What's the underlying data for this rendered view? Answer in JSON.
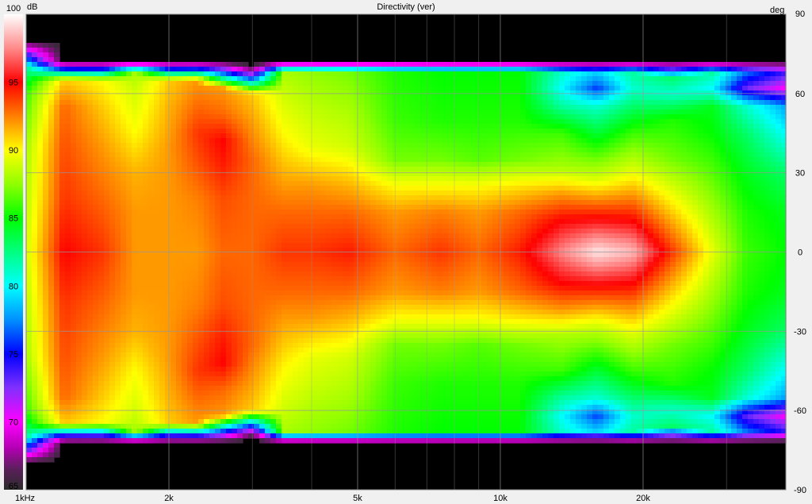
{
  "chart_data": {
    "type": "heatmap",
    "title": "Directivity (ver)",
    "colorbar": {
      "unit": "dB",
      "ticks": [
        100,
        95,
        90,
        85,
        80,
        75,
        70,
        65
      ],
      "range": [
        65,
        100
      ],
      "stops": [
        {
          "v": 65,
          "c": "#2b2b2b"
        },
        {
          "v": 66.5,
          "c": "#5a1f5a"
        },
        {
          "v": 68,
          "c": "#b000b0"
        },
        {
          "v": 70,
          "c": "#ff00ff"
        },
        {
          "v": 72.5,
          "c": "#8030ff"
        },
        {
          "v": 75,
          "c": "#0000ff"
        },
        {
          "v": 77.5,
          "c": "#0090ff"
        },
        {
          "v": 80,
          "c": "#00ffff"
        },
        {
          "v": 82.5,
          "c": "#00ff80"
        },
        {
          "v": 85,
          "c": "#00ff00"
        },
        {
          "v": 87.5,
          "c": "#90ff00"
        },
        {
          "v": 90,
          "c": "#ffff00"
        },
        {
          "v": 92.5,
          "c": "#ff8000"
        },
        {
          "v": 95,
          "c": "#ff0000"
        },
        {
          "v": 97.5,
          "c": "#ff8a8a"
        },
        {
          "v": 100,
          "c": "#ffffff"
        }
      ]
    },
    "y_axis": {
      "unit": "deg",
      "ticks": [
        90,
        60,
        30,
        0,
        -30,
        -60,
        -90
      ],
      "range": [
        -90,
        90
      ]
    },
    "x_axis": {
      "scale": "log",
      "range_hz": [
        1000,
        40000
      ],
      "tick_labels": [
        {
          "hz": 1000,
          "label": "1kHz"
        },
        {
          "hz": 2000,
          "label": "2k"
        },
        {
          "hz": 5000,
          "label": "5k"
        },
        {
          "hz": 10000,
          "label": "10k"
        },
        {
          "hz": 20000,
          "label": "20k"
        }
      ],
      "minor_gridlines_hz": [
        3000,
        4000,
        6000,
        7000,
        8000,
        9000,
        30000,
        40000
      ]
    },
    "grid": true,
    "columns": [
      {
        "hz": 1000,
        "profile": [
          [
            0,
            89
          ],
          [
            40,
            88
          ],
          [
            60,
            86
          ],
          [
            70,
            82
          ],
          [
            80,
            65
          ]
        ]
      },
      {
        "hz": 1200,
        "profile": [
          [
            0,
            95
          ],
          [
            20,
            94
          ],
          [
            40,
            93.5
          ],
          [
            55,
            93
          ],
          [
            65,
            91
          ],
          [
            72,
            65
          ]
        ]
      },
      {
        "hz": 1450,
        "profile": [
          [
            0,
            94
          ],
          [
            20,
            93
          ],
          [
            40,
            92
          ],
          [
            55,
            91
          ],
          [
            65,
            90
          ],
          [
            72,
            65
          ]
        ]
      },
      {
        "hz": 1700,
        "profile": [
          [
            0,
            92
          ],
          [
            15,
            92
          ],
          [
            30,
            91.5
          ],
          [
            45,
            90
          ],
          [
            60,
            89
          ],
          [
            68,
            88
          ],
          [
            72,
            65
          ]
        ]
      },
      {
        "hz": 2000,
        "profile": [
          [
            0,
            92
          ],
          [
            20,
            92
          ],
          [
            40,
            92
          ],
          [
            55,
            91.5
          ],
          [
            65,
            91
          ],
          [
            72,
            65
          ]
        ]
      },
      {
        "hz": 2300,
        "profile": [
          [
            0,
            92
          ],
          [
            20,
            92.5
          ],
          [
            35,
            93.5
          ],
          [
            45,
            94
          ],
          [
            55,
            93
          ],
          [
            65,
            92
          ],
          [
            72,
            65
          ]
        ]
      },
      {
        "hz": 2600,
        "profile": [
          [
            0,
            93
          ],
          [
            20,
            93.5
          ],
          [
            33,
            94.5
          ],
          [
            42,
            95
          ],
          [
            52,
            93
          ],
          [
            62,
            92
          ],
          [
            72,
            65
          ]
        ]
      },
      {
        "hz": 3000,
        "profile": [
          [
            0,
            93
          ],
          [
            20,
            93
          ],
          [
            35,
            93
          ],
          [
            48,
            92
          ],
          [
            60,
            91
          ],
          [
            70,
            65
          ]
        ]
      },
      {
        "hz": 3500,
        "profile": [
          [
            0,
            94
          ],
          [
            15,
            93
          ],
          [
            30,
            91.5
          ],
          [
            45,
            90
          ],
          [
            58,
            89
          ],
          [
            68,
            88
          ],
          [
            72,
            65
          ]
        ]
      },
      {
        "hz": 4000,
        "profile": [
          [
            0,
            94
          ],
          [
            15,
            93
          ],
          [
            25,
            92
          ],
          [
            40,
            89.5
          ],
          [
            55,
            88.5
          ],
          [
            68,
            87.5
          ],
          [
            72,
            65
          ]
        ]
      },
      {
        "hz": 4800,
        "profile": [
          [
            0,
            94.5
          ],
          [
            15,
            93
          ],
          [
            25,
            91.5
          ],
          [
            40,
            89
          ],
          [
            55,
            88
          ],
          [
            68,
            87
          ],
          [
            72,
            65
          ]
        ]
      },
      {
        "hz": 6000,
        "profile": [
          [
            0,
            93
          ],
          [
            15,
            92
          ],
          [
            25,
            90
          ],
          [
            35,
            87
          ],
          [
            50,
            86
          ],
          [
            68,
            85.5
          ],
          [
            72,
            65
          ]
        ]
      },
      {
        "hz": 7500,
        "profile": [
          [
            0,
            94
          ],
          [
            15,
            92.5
          ],
          [
            25,
            90
          ],
          [
            35,
            87
          ],
          [
            50,
            85.5
          ],
          [
            68,
            85
          ],
          [
            72,
            65
          ]
        ]
      },
      {
        "hz": 9000,
        "profile": [
          [
            0,
            93
          ],
          [
            15,
            92
          ],
          [
            25,
            90
          ],
          [
            35,
            86.5
          ],
          [
            50,
            85.5
          ],
          [
            68,
            85
          ],
          [
            72,
            65
          ]
        ]
      },
      {
        "hz": 11000,
        "profile": [
          [
            0,
            94.5
          ],
          [
            15,
            93
          ],
          [
            25,
            90.5
          ],
          [
            35,
            87
          ],
          [
            50,
            85.5
          ],
          [
            68,
            85
          ],
          [
            72,
            65
          ]
        ]
      },
      {
        "hz": 13500,
        "profile": [
          [
            0,
            97.5
          ],
          [
            12,
            95
          ],
          [
            22,
            92
          ],
          [
            32,
            88
          ],
          [
            45,
            86
          ],
          [
            55,
            82
          ],
          [
            62,
            80
          ],
          [
            68,
            81
          ],
          [
            72,
            65
          ]
        ]
      },
      {
        "hz": 16000,
        "profile": [
          [
            0,
            99.5
          ],
          [
            10,
            96
          ],
          [
            18,
            93
          ],
          [
            28,
            89
          ],
          [
            40,
            85.5
          ],
          [
            55,
            81
          ],
          [
            62,
            76
          ],
          [
            68,
            79
          ],
          [
            72,
            65
          ]
        ]
      },
      {
        "hz": 19000,
        "profile": [
          [
            0,
            98.5
          ],
          [
            12,
            95
          ],
          [
            22,
            92
          ],
          [
            32,
            89
          ],
          [
            45,
            86
          ],
          [
            55,
            83
          ],
          [
            62,
            81
          ],
          [
            68,
            82
          ],
          [
            72,
            65
          ]
        ]
      },
      {
        "hz": 23000,
        "profile": [
          [
            0,
            94
          ],
          [
            15,
            91
          ],
          [
            25,
            89
          ],
          [
            35,
            87
          ],
          [
            50,
            85.5
          ],
          [
            60,
            81
          ],
          [
            66,
            83
          ],
          [
            72,
            65
          ]
        ]
      },
      {
        "hz": 28000,
        "profile": [
          [
            0,
            89.5
          ],
          [
            15,
            88
          ],
          [
            30,
            86.5
          ],
          [
            45,
            85
          ],
          [
            55,
            84.5
          ],
          [
            62,
            80
          ],
          [
            68,
            82
          ],
          [
            72,
            65
          ]
        ]
      },
      {
        "hz": 33000,
        "profile": [
          [
            0,
            86
          ],
          [
            15,
            85.5
          ],
          [
            30,
            84.5
          ],
          [
            45,
            83
          ],
          [
            55,
            81
          ],
          [
            62,
            73
          ],
          [
            68,
            77
          ],
          [
            72,
            65
          ]
        ]
      },
      {
        "hz": 40000,
        "profile": [
          [
            0,
            85
          ],
          [
            15,
            84.5
          ],
          [
            30,
            83
          ],
          [
            45,
            80
          ],
          [
            55,
            78
          ],
          [
            62,
            70
          ],
          [
            68,
            74
          ],
          [
            72,
            65
          ]
        ]
      }
    ]
  }
}
